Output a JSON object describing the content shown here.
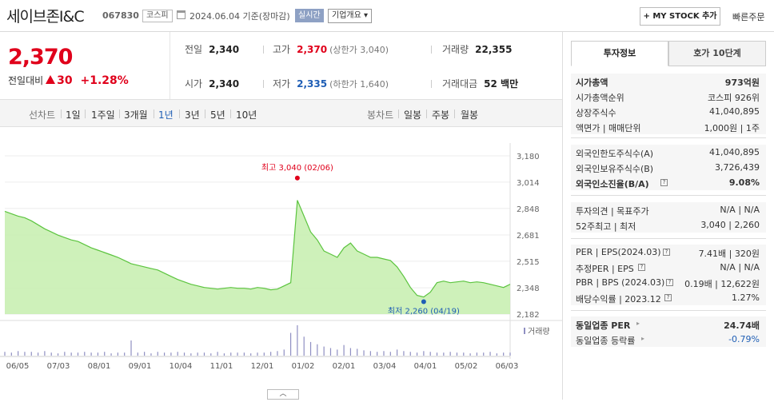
{
  "header": {
    "company_name": "세이브존I&C",
    "code": "067830",
    "market": "코스피",
    "date": "2024.06.04  기준(장마감)",
    "realtime": "실시간",
    "company_info": "기업개요 ▾",
    "my_stock": "+ MY STOCK 추가",
    "fast_order": "빠른주문"
  },
  "price": {
    "current": "2,370",
    "change_label": "전일대비",
    "change": "30",
    "change_pct": "+1.28%"
  },
  "stats": {
    "prev_label": "전일",
    "prev": "2,340",
    "high_label": "고가",
    "high": "2,370",
    "high_limit": "(상한가 3,040)",
    "volume_label": "거래량",
    "volume": "22,355",
    "open_label": "시가",
    "open": "2,340",
    "low_label": "저가",
    "low": "2,335",
    "low_limit": "(하한가 1,640)",
    "amount_label": "거래대금",
    "amount": "52 백만"
  },
  "period": {
    "line_chart_label": "선차트",
    "periods": [
      "1일",
      "1주일",
      "3개월",
      "1년",
      "3년",
      "5년",
      "10년"
    ],
    "active": "1년",
    "candle_label": "봉차트",
    "candles": [
      "일봉",
      "주봉",
      "월봉"
    ]
  },
  "colors": {
    "up": "#e0001b",
    "down": "#1f5eb5",
    "area": "#c9f0b3",
    "line": "#5cc43f"
  },
  "chart_data": {
    "type": "area",
    "x_labels": [
      "06/05",
      "07/03",
      "08/01",
      "09/01",
      "10/04",
      "11/01",
      "12/01",
      "01/02",
      "02/01",
      "03/04",
      "04/01",
      "05/02",
      "06/03"
    ],
    "y_ticks": [
      3180,
      3014,
      2848,
      2681,
      2515,
      2348,
      2182
    ],
    "ylim": [
      2182,
      3180
    ],
    "values": [
      2830,
      2815,
      2800,
      2790,
      2770,
      2745,
      2720,
      2700,
      2680,
      2665,
      2650,
      2640,
      2620,
      2600,
      2585,
      2570,
      2555,
      2540,
      2520,
      2500,
      2490,
      2480,
      2470,
      2460,
      2440,
      2420,
      2400,
      2385,
      2370,
      2360,
      2350,
      2345,
      2340,
      2345,
      2350,
      2345,
      2345,
      2340,
      2350,
      2345,
      2335,
      2340,
      2360,
      2380,
      2900,
      2800,
      2700,
      2650,
      2580,
      2560,
      2540,
      2600,
      2630,
      2580,
      2560,
      2540,
      2540,
      2530,
      2520,
      2480,
      2420,
      2350,
      2300,
      2290,
      2320,
      2380,
      2390,
      2380,
      2385,
      2390,
      2380,
      2385,
      2380,
      2370,
      2360,
      2350,
      2370
    ],
    "volume": [
      5,
      4,
      6,
      5,
      5,
      4,
      6,
      4,
      3,
      5,
      4,
      4,
      5,
      4,
      4,
      5,
      3,
      4,
      4,
      20,
      4,
      5,
      3,
      5,
      4,
      4,
      5,
      4,
      3,
      4,
      4,
      3,
      5,
      3,
      4,
      4,
      4,
      3,
      4,
      4,
      5,
      6,
      8,
      30,
      40,
      25,
      18,
      15,
      12,
      10,
      8,
      14,
      10,
      9,
      7,
      6,
      5,
      6,
      5,
      8,
      6,
      5,
      4,
      6,
      5,
      4,
      4,
      5,
      4,
      4,
      3,
      4,
      4,
      5,
      3,
      4,
      4
    ],
    "high_annotation": "최고 3,040 (02/06)",
    "high_value": 3040,
    "low_annotation": "최저 2,260 (04/19)",
    "low_value": 2260,
    "volume_label": "거래량"
  },
  "side": {
    "tab1": "투자정보",
    "tab2": "호가 10단계",
    "s1": [
      {
        "k": "시가총액",
        "v": "973억원",
        "bold": true
      },
      {
        "k": "시가총액순위",
        "v": "코스피  926위"
      },
      {
        "k": "상장주식수",
        "v": "41,040,895"
      },
      {
        "k": "액면가 | 매매단위",
        "v": "1,000원 | 1주"
      }
    ],
    "s2": [
      {
        "k": "외국인한도주식수(A)",
        "v": "41,040,895"
      },
      {
        "k": "외국인보유주식수(B)",
        "v": "3,726,439"
      },
      {
        "k": "외국인소진율(B/A)",
        "v": "9.08%",
        "bold": true
      }
    ],
    "s3": [
      {
        "k": "투자의견 | 목표주가",
        "v": "N/A | N/A"
      },
      {
        "k": "52주최고 | 최저",
        "v": "3,040 | 2,260"
      }
    ],
    "s4": [
      {
        "k": "PER | EPS(2024.03)",
        "v": "7.41배 | 320원"
      },
      {
        "k": "추정PER | EPS",
        "v": "N/A | N/A"
      },
      {
        "k": "PBR | BPS (2024.03)",
        "v": "0.19배 | 12,622원"
      },
      {
        "k": "배당수익률 | 2023.12",
        "v": "1.27%"
      }
    ],
    "s5": [
      {
        "k": "동일업종 PER",
        "v": "24.74배",
        "bold": true
      },
      {
        "k": "동일업종 등락률",
        "v": "-0.79%",
        "blue": true
      }
    ]
  }
}
